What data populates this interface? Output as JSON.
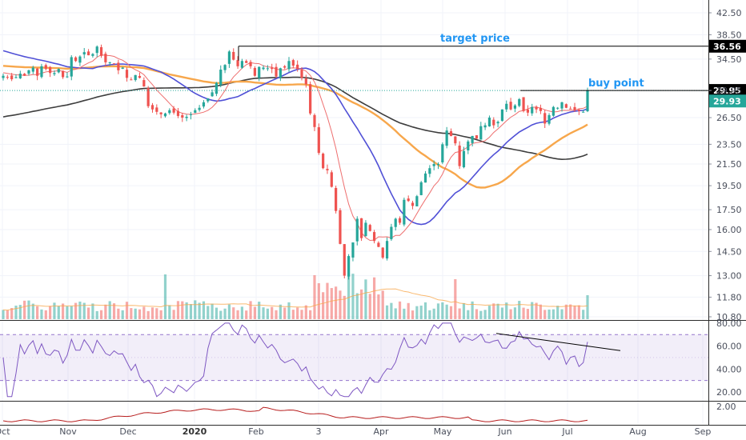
{
  "chart_data": [
    {
      "type": "candlestick",
      "name": "price",
      "scale": "log",
      "ylim": [
        10.8,
        42.5
      ],
      "y_ticks": [
        "42.50",
        "38.50",
        "34.50",
        "29.95",
        "26.50",
        "23.50",
        "21.50",
        "19.50",
        "17.50",
        "16.00",
        "14.50",
        "13.00",
        "11.80",
        "10.80"
      ],
      "x_ticks": [
        "Oct",
        "Nov",
        "Dec",
        "2020",
        "Feb",
        "3",
        "Apr",
        "May",
        "Jun",
        "Jul",
        "Aug",
        "Sep"
      ],
      "close_series": [
        32.0,
        31.8,
        31.5,
        31.8,
        32.3,
        32.0,
        32.8,
        33.2,
        32.0,
        33.4,
        33.0,
        32.4,
        32.4,
        33.0,
        31.8,
        31.9,
        34.8,
        34.2,
        34.9,
        35.6,
        35.1,
        35.3,
        36.5,
        35.0,
        34.0,
        34.0,
        33.8,
        32.8,
        33.2,
        31.7,
        31.4,
        32.1,
        31.7,
        30.5,
        27.9,
        27.5,
        27.2,
        26.9,
        27.0,
        27.4,
        27.1,
        26.7,
        26.5,
        26.6,
        26.9,
        27.4,
        27.7,
        28.4,
        28.9,
        29.7,
        31.0,
        32.9,
        33.6,
        35.7,
        34.4,
        33.4,
        34.2,
        33.9,
        33.4,
        32.0,
        33.3,
        33.2,
        33.1,
        33.0,
        31.9,
        33.1,
        33.2,
        34.2,
        33.5,
        33.0,
        31.7,
        30.8,
        27.0,
        25.4,
        22.6,
        21.1,
        20.9,
        19.4,
        17.4,
        15.0,
        13.0,
        14.2,
        15.1,
        16.8,
        15.4,
        16.5,
        15.9,
        15.2,
        14.8,
        14.1,
        15.2,
        16.2,
        16.8,
        16.5,
        18.3,
        18.2,
        17.8,
        18.6,
        19.8,
        20.6,
        21.1,
        21.5,
        21.5,
        23.5,
        25.0,
        24.4,
        23.6,
        21.3,
        22.8,
        23.8,
        24.4,
        24.1,
        25.5,
        25.6,
        26.5,
        25.6,
        26.0,
        27.5,
        28.2,
        27.5,
        28.0,
        28.8,
        27.3,
        27.1,
        27.8,
        27.5,
        27.3,
        25.8,
        26.8,
        27.8,
        27.7,
        28.4,
        27.7,
        27.6,
        27.4,
        27.3,
        27.2,
        29.93
      ],
      "series": [
        {
          "name": "",
          "color": "#f7a74c"
        },
        {
          "name": "",
          "color": "#5050d6"
        },
        {
          "name": "",
          "color": "#3d3d3d"
        },
        {
          "name": "",
          "color": "#ee6e6e"
        }
      ],
      "last_price_badge": "29.93",
      "buy_point_level": "29.95",
      "target_price_level": "36.56",
      "colors": {
        "up": "#26a69a",
        "down": "#ef5350"
      }
    },
    {
      "type": "bar",
      "name": "volume",
      "note": "relative volume bars with moving average (no scale printed)"
    },
    {
      "type": "line",
      "name": "rsi",
      "ylim": [
        13,
        82
      ],
      "y_ticks": [
        "80.00",
        "60.00",
        "40.00",
        "20.00"
      ],
      "band": [
        30,
        70
      ],
      "color": "#7e57c2"
    },
    {
      "type": "line",
      "name": "lower_indicator",
      "y_ticks": [
        "2.00"
      ],
      "color": "#b71c1c"
    }
  ],
  "annotations": {
    "target_label": "target price",
    "buy_label": "buy point"
  }
}
